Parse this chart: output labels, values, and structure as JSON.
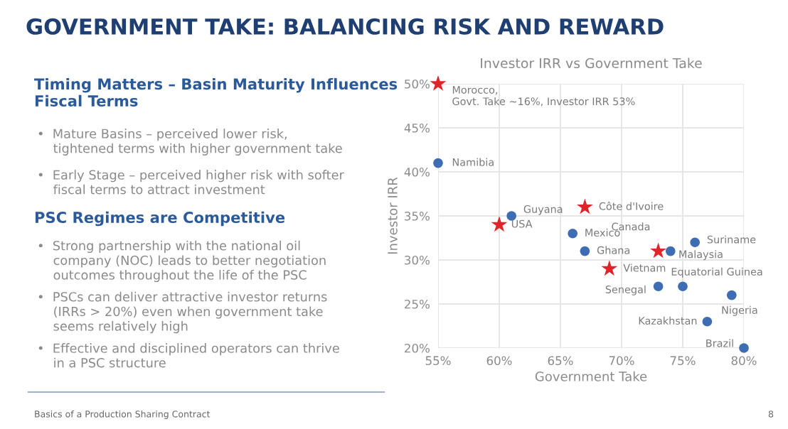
{
  "chart_data": {
    "type": "scatter",
    "title": "GOVERNMENT TAKE: BALANCING RISK AND REWARD",
    "subtitle": "Investor IRR vs Government Take",
    "xlabel": "Government Take",
    "ylabel": "Investor IRR",
    "xlim": [
      55,
      80
    ],
    "ylim": [
      20,
      50
    ],
    "xticks": [
      {
        "value": 55,
        "label": "55%"
      },
      {
        "value": 60,
        "label": "60%"
      },
      {
        "value": 65,
        "label": "65%"
      },
      {
        "value": 70,
        "label": "70%"
      },
      {
        "value": 75,
        "label": "75%"
      },
      {
        "value": 80,
        "label": "80%"
      }
    ],
    "yticks": [
      {
        "value": 20,
        "label": "20%"
      },
      {
        "value": 25,
        "label": "25%"
      },
      {
        "value": 30,
        "label": "30%"
      },
      {
        "value": 35,
        "label": "35%"
      },
      {
        "value": 40,
        "label": "40%"
      },
      {
        "value": 45,
        "label": "45%"
      },
      {
        "value": 50,
        "label": "50%"
      }
    ],
    "grid": true,
    "legend": false,
    "series": [
      {
        "color": "#3e6db3",
        "marker": "circle",
        "x": [
          55,
          61,
          66,
          67,
          74,
          76,
          73,
          75,
          79,
          77,
          80
        ],
        "values": [
          41,
          35,
          33,
          31,
          31,
          32,
          27,
          27,
          26,
          23,
          20
        ]
      },
      {
        "color": "#e0242a",
        "marker": "star",
        "x": [
          55,
          60,
          67,
          73,
          69
        ],
        "values": [
          50,
          34,
          36,
          31,
          29
        ]
      }
    ],
    "annotations": [
      "Timing Matters – Basin Maturity Influences\nFiscal Terms",
      "•  Mature Basins – perceived lower risk,\n    tightened terms with higher government take",
      "•  Early Stage – perceived higher risk with softer\n    fiscal terms to attract investment",
      "PSC Regimes are Competitive",
      "•  Strong partnership with the national oil\n    company (NOC) leads to better negotiation\n    outcomes throughout the life of the PSC",
      "•  PSCs can deliver attractive investor returns\n    (IRRs > 20%) even when government take\n    seems relatively high",
      "•  Effective and disciplined operators can thrive\n    in a PSC structure",
      "Basics of a Production Sharing Contract",
      "8",
      {
        "text": "Morocco,\nGovt. Take ~16%, Investor IRR 53%",
        "x": 55,
        "y": 50
      },
      {
        "text": "Namibia",
        "x": 55,
        "y": 41
      },
      {
        "text": "Guyana",
        "x": 61,
        "y": 35
      },
      {
        "text": "USA",
        "x": 60,
        "y": 34
      },
      {
        "text": "Côte d'Ivoire",
        "x": 67,
        "y": 36
      },
      {
        "text": "Mexico",
        "x": 66,
        "y": 33
      },
      {
        "text": "Ghana",
        "x": 67,
        "y": 31
      },
      {
        "text": "Canada",
        "x": 73,
        "y": 31
      },
      {
        "text": "Malaysia",
        "x": 74,
        "y": 31
      },
      {
        "text": "Suriname",
        "x": 76,
        "y": 32
      },
      {
        "text": "Vietnam",
        "x": 69,
        "y": 29
      },
      {
        "text": "Senegal",
        "x": 73,
        "y": 27
      },
      {
        "text": "Equatorial Guinea",
        "x": 75,
        "y": 27
      },
      {
        "text": "Nigeria",
        "x": 79,
        "y": 26
      },
      {
        "text": "Kazakhstan",
        "x": 77,
        "y": 23
      },
      {
        "text": "Brazil",
        "x": 80,
        "y": 20
      }
    ]
  }
}
